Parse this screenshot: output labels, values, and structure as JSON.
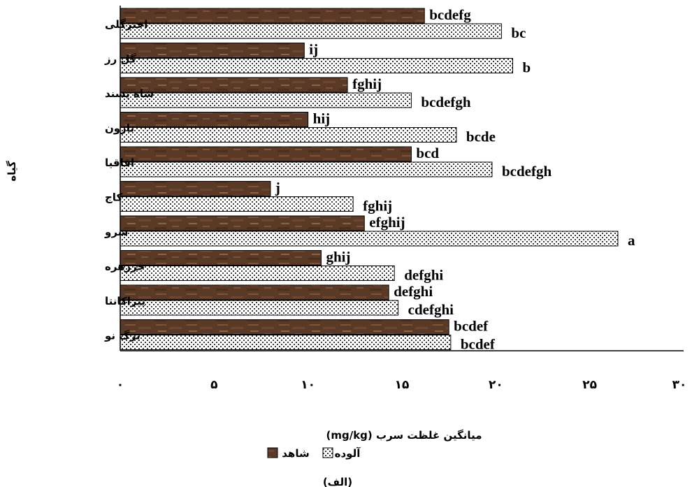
{
  "chart_data": {
    "type": "bar",
    "orientation": "horizontal",
    "categories": [
      "اخترگلی",
      "گل رز",
      "شاه پسند",
      "نارون",
      "اقاقیا",
      "کاج",
      "سرو",
      "خرزهره",
      "پیراکانتا",
      "برگ نو"
    ],
    "series": [
      {
        "name": "شاهد",
        "values": [
          16.2,
          9.8,
          12.1,
          10.0,
          15.5,
          8.0,
          13.0,
          10.7,
          14.3,
          17.5
        ],
        "letters": [
          "bcdefg",
          "ij",
          "fghij",
          "hij",
          "bcd",
          "j",
          "efghij",
          "ghij",
          "defghi",
          "bcdef"
        ]
      },
      {
        "name": "آلوده",
        "values": [
          20.3,
          20.9,
          15.5,
          17.9,
          19.8,
          12.4,
          26.5,
          14.6,
          14.8,
          17.6
        ],
        "letters": [
          "bc",
          "b",
          "bcdefgh",
          "bcde",
          "bcdefgh",
          "fghij",
          "a",
          "defghi",
          "cdefghi",
          "bcdef"
        ]
      }
    ],
    "x_ticks": [
      "۰",
      "۵",
      "۱۰",
      "۱۵",
      "۲۰",
      "۲۵",
      "۳۰"
    ],
    "xlim": [
      0,
      30
    ],
    "xlabel": "میانگین غلظت سرب (mg/kg)",
    "ylabel": "گیاه",
    "legend_position": "bottom",
    "caption": "(الف)"
  },
  "colors": {
    "control_fill": "#5a3a26",
    "control_light": "#8a6446",
    "polluted_dot": "#3a3a3a",
    "polluted_bg": "#ffffff",
    "axis": "#000000"
  }
}
